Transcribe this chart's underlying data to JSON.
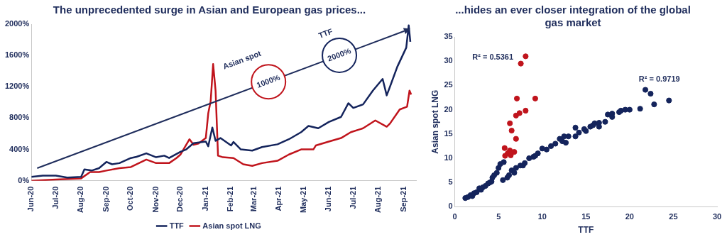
{
  "chart_data": [
    {
      "type": "line",
      "title": "The unprecedented surge in Asian and European gas prices...",
      "xlim": [
        "2020-06-01",
        "2021-09-16"
      ],
      "ylim": [
        0,
        2000
      ],
      "xticks": [
        {
          "value": "2020-06-01",
          "label": "Jun-20"
        },
        {
          "value": "2020-07-01",
          "label": "Jul-20"
        },
        {
          "value": "2020-08-01",
          "label": "Aug-20"
        },
        {
          "value": "2020-09-01",
          "label": "Sep-20"
        },
        {
          "value": "2020-10-01",
          "label": "Oct-20"
        },
        {
          "value": "2020-11-01",
          "label": "Nov-20"
        },
        {
          "value": "2020-12-01",
          "label": "Dec-20"
        },
        {
          "value": "2021-01-01",
          "label": "Jan-21"
        },
        {
          "value": "2021-02-01",
          "label": "Feb-21"
        },
        {
          "value": "2021-03-01",
          "label": "Mar-21"
        },
        {
          "value": "2021-04-01",
          "label": "Apr-21"
        },
        {
          "value": "2021-05-01",
          "label": "May-21"
        },
        {
          "value": "2021-06-01",
          "label": "Jun-21"
        },
        {
          "value": "2021-07-01",
          "label": "Jul-21"
        },
        {
          "value": "2021-08-01",
          "label": "Aug-21"
        },
        {
          "value": "2021-09-01",
          "label": "Sep-21"
        }
      ],
      "yticks": [
        {
          "value": 0,
          "label": "0%"
        },
        {
          "value": 400,
          "label": "400%"
        },
        {
          "value": 800,
          "label": "800%"
        },
        {
          "value": 1200,
          "label": "1200%"
        },
        {
          "value": 1600,
          "label": "1600%"
        },
        {
          "value": 2000,
          "label": "2000%"
        }
      ],
      "grid": false,
      "legend": "bottom",
      "marker": "none",
      "line_style": "solid",
      "annotations": [
        "Asian spot",
        "1000%",
        "TTF",
        "2000%"
      ],
      "series": [
        {
          "name": "TTF",
          "color": "#14245c",
          "x": [
            "2020-06-01",
            "2020-06-15",
            "2020-07-01",
            "2020-07-15",
            "2020-08-01",
            "2020-08-05",
            "2020-08-14",
            "2020-08-23",
            "2020-09-01",
            "2020-09-08",
            "2020-09-17",
            "2020-10-01",
            "2020-10-08",
            "2020-10-20",
            "2020-11-01",
            "2020-11-11",
            "2020-11-17",
            "2020-12-01",
            "2020-12-08",
            "2020-12-17",
            "2021-01-01",
            "2021-01-04",
            "2021-01-09",
            "2021-01-13",
            "2021-01-19",
            "2021-02-01",
            "2021-02-04",
            "2021-02-13",
            "2021-02-27",
            "2021-03-11",
            "2021-03-30",
            "2021-04-13",
            "2021-04-28",
            "2021-05-07",
            "2021-05-19",
            "2021-06-01",
            "2021-06-16",
            "2021-06-25",
            "2021-07-01",
            "2021-07-13",
            "2021-07-25",
            "2021-08-06",
            "2021-08-11",
            "2021-08-15",
            "2021-08-24",
            "2021-09-04",
            "2021-09-07",
            "2021-09-09"
          ],
          "values": [
            50,
            65,
            65,
            40,
            50,
            145,
            130,
            160,
            240,
            210,
            225,
            290,
            305,
            350,
            300,
            320,
            290,
            370,
            400,
            480,
            500,
            440,
            680,
            510,
            545,
            450,
            495,
            400,
            385,
            430,
            465,
            530,
            620,
            700,
            670,
            750,
            815,
            990,
            930,
            975,
            1150,
            1300,
            1090,
            1200,
            1455,
            1700,
            1985,
            1775
          ]
        },
        {
          "name": "Asian spot LNG",
          "color": "#c0141c",
          "x": [
            "2020-06-01",
            "2020-07-01",
            "2020-08-01",
            "2020-08-12",
            "2020-08-23",
            "2020-09-01",
            "2020-09-17",
            "2020-10-01",
            "2020-10-20",
            "2020-11-01",
            "2020-11-17",
            "2020-11-26",
            "2020-12-01",
            "2020-12-12",
            "2020-12-17",
            "2020-12-23",
            "2021-01-01",
            "2021-01-04",
            "2021-01-07",
            "2021-01-10",
            "2021-01-13",
            "2021-01-16",
            "2021-01-22",
            "2021-02-04",
            "2021-02-16",
            "2021-02-27",
            "2021-03-11",
            "2021-03-30",
            "2021-04-13",
            "2021-04-28",
            "2021-05-13",
            "2021-05-16",
            "2021-06-01",
            "2021-06-16",
            "2021-06-28",
            "2021-07-13",
            "2021-07-28",
            "2021-08-11",
            "2021-08-15",
            "2021-08-27",
            "2021-09-05",
            "2021-09-08",
            "2021-09-10"
          ],
          "values": [
            0,
            15,
            30,
            110,
            110,
            130,
            160,
            175,
            270,
            225,
            225,
            290,
            335,
            530,
            460,
            475,
            545,
            860,
            1020,
            1490,
            1150,
            320,
            300,
            290,
            210,
            190,
            225,
            255,
            335,
            400,
            400,
            450,
            500,
            545,
            620,
            670,
            770,
            690,
            730,
            910,
            945,
            1150,
            1100
          ]
        }
      ]
    },
    {
      "type": "scatter",
      "title": "...hides an ever closer integration of the global gas market",
      "xlabel": "TTF",
      "ylabel": "Asian spot LNG",
      "xlim": [
        0,
        30
      ],
      "ylim": [
        0,
        35
      ],
      "xticks": [
        0,
        5,
        10,
        15,
        20,
        25,
        30
      ],
      "yticks": [
        0,
        5,
        10,
        15,
        20,
        25,
        30,
        35
      ],
      "grid": false,
      "legend": false,
      "marker": "circle",
      "annotations": [
        "R² = 0.5361",
        "R² = 0.9719"
      ],
      "series": [
        {
          "color": "#c0141c",
          "x": [
            8.1,
            7.55,
            7.1,
            9.2,
            8.1,
            7.4,
            7.0,
            6.3,
            6.5,
            7.0,
            5.7,
            6.3,
            6.8,
            5.75,
            6.05,
            6.4
          ],
          "values": [
            31.0,
            29.5,
            22.3,
            22.3,
            19.8,
            19.3,
            18.8,
            17.2,
            15.7,
            14.0,
            12.1,
            11.6,
            11.3,
            10.5,
            11.0,
            10.6
          ]
        },
        {
          "color": "#14245c",
          "x": [
            1.2,
            1.5,
            1.8,
            2.0,
            2.2,
            2.5,
            2.8,
            3.0,
            3.2,
            3.5,
            3.8,
            4.0,
            4.2,
            4.3,
            4.5,
            4.8,
            5.0,
            5.2,
            5.6,
            5.5,
            6.0,
            6.2,
            6.5,
            6.8,
            7.0,
            7.5,
            7.8,
            8.0,
            8.5,
            9.0,
            9.2,
            9.5,
            10.0,
            10.5,
            11.0,
            11.5,
            12.0,
            12.3,
            12.5,
            12.7,
            13.0,
            13.8,
            13.8,
            14.2,
            14.8,
            15.0,
            15.5,
            15.8,
            16.0,
            16.5,
            16.5,
            17.2,
            17.5,
            18.0,
            18.0,
            18.8,
            19.0,
            19.5,
            20.0,
            21.2,
            21.8,
            22.4,
            22.8,
            24.5
          ],
          "values": [
            1.8,
            2.0,
            2.4,
            2.2,
            2.8,
            3.0,
            3.8,
            3.5,
            4.0,
            4.3,
            4.8,
            5.0,
            5.2,
            6.0,
            6.5,
            7.0,
            8.0,
            8.8,
            9.2,
            5.5,
            6.0,
            6.5,
            7.5,
            7.0,
            8.0,
            8.5,
            8.5,
            9.0,
            10.0,
            10.3,
            10.5,
            11.0,
            12.0,
            11.8,
            12.5,
            13.0,
            14.0,
            13.5,
            14.5,
            13.2,
            14.5,
            16.3,
            14.5,
            15.3,
            16.0,
            15.6,
            16.5,
            16.8,
            17.2,
            17.3,
            16.5,
            17.5,
            19.0,
            19.2,
            18.5,
            19.5,
            19.8,
            20.0,
            20.0,
            20.2,
            24.1,
            23.3,
            21.1,
            21.9
          ]
        }
      ]
    }
  ]
}
